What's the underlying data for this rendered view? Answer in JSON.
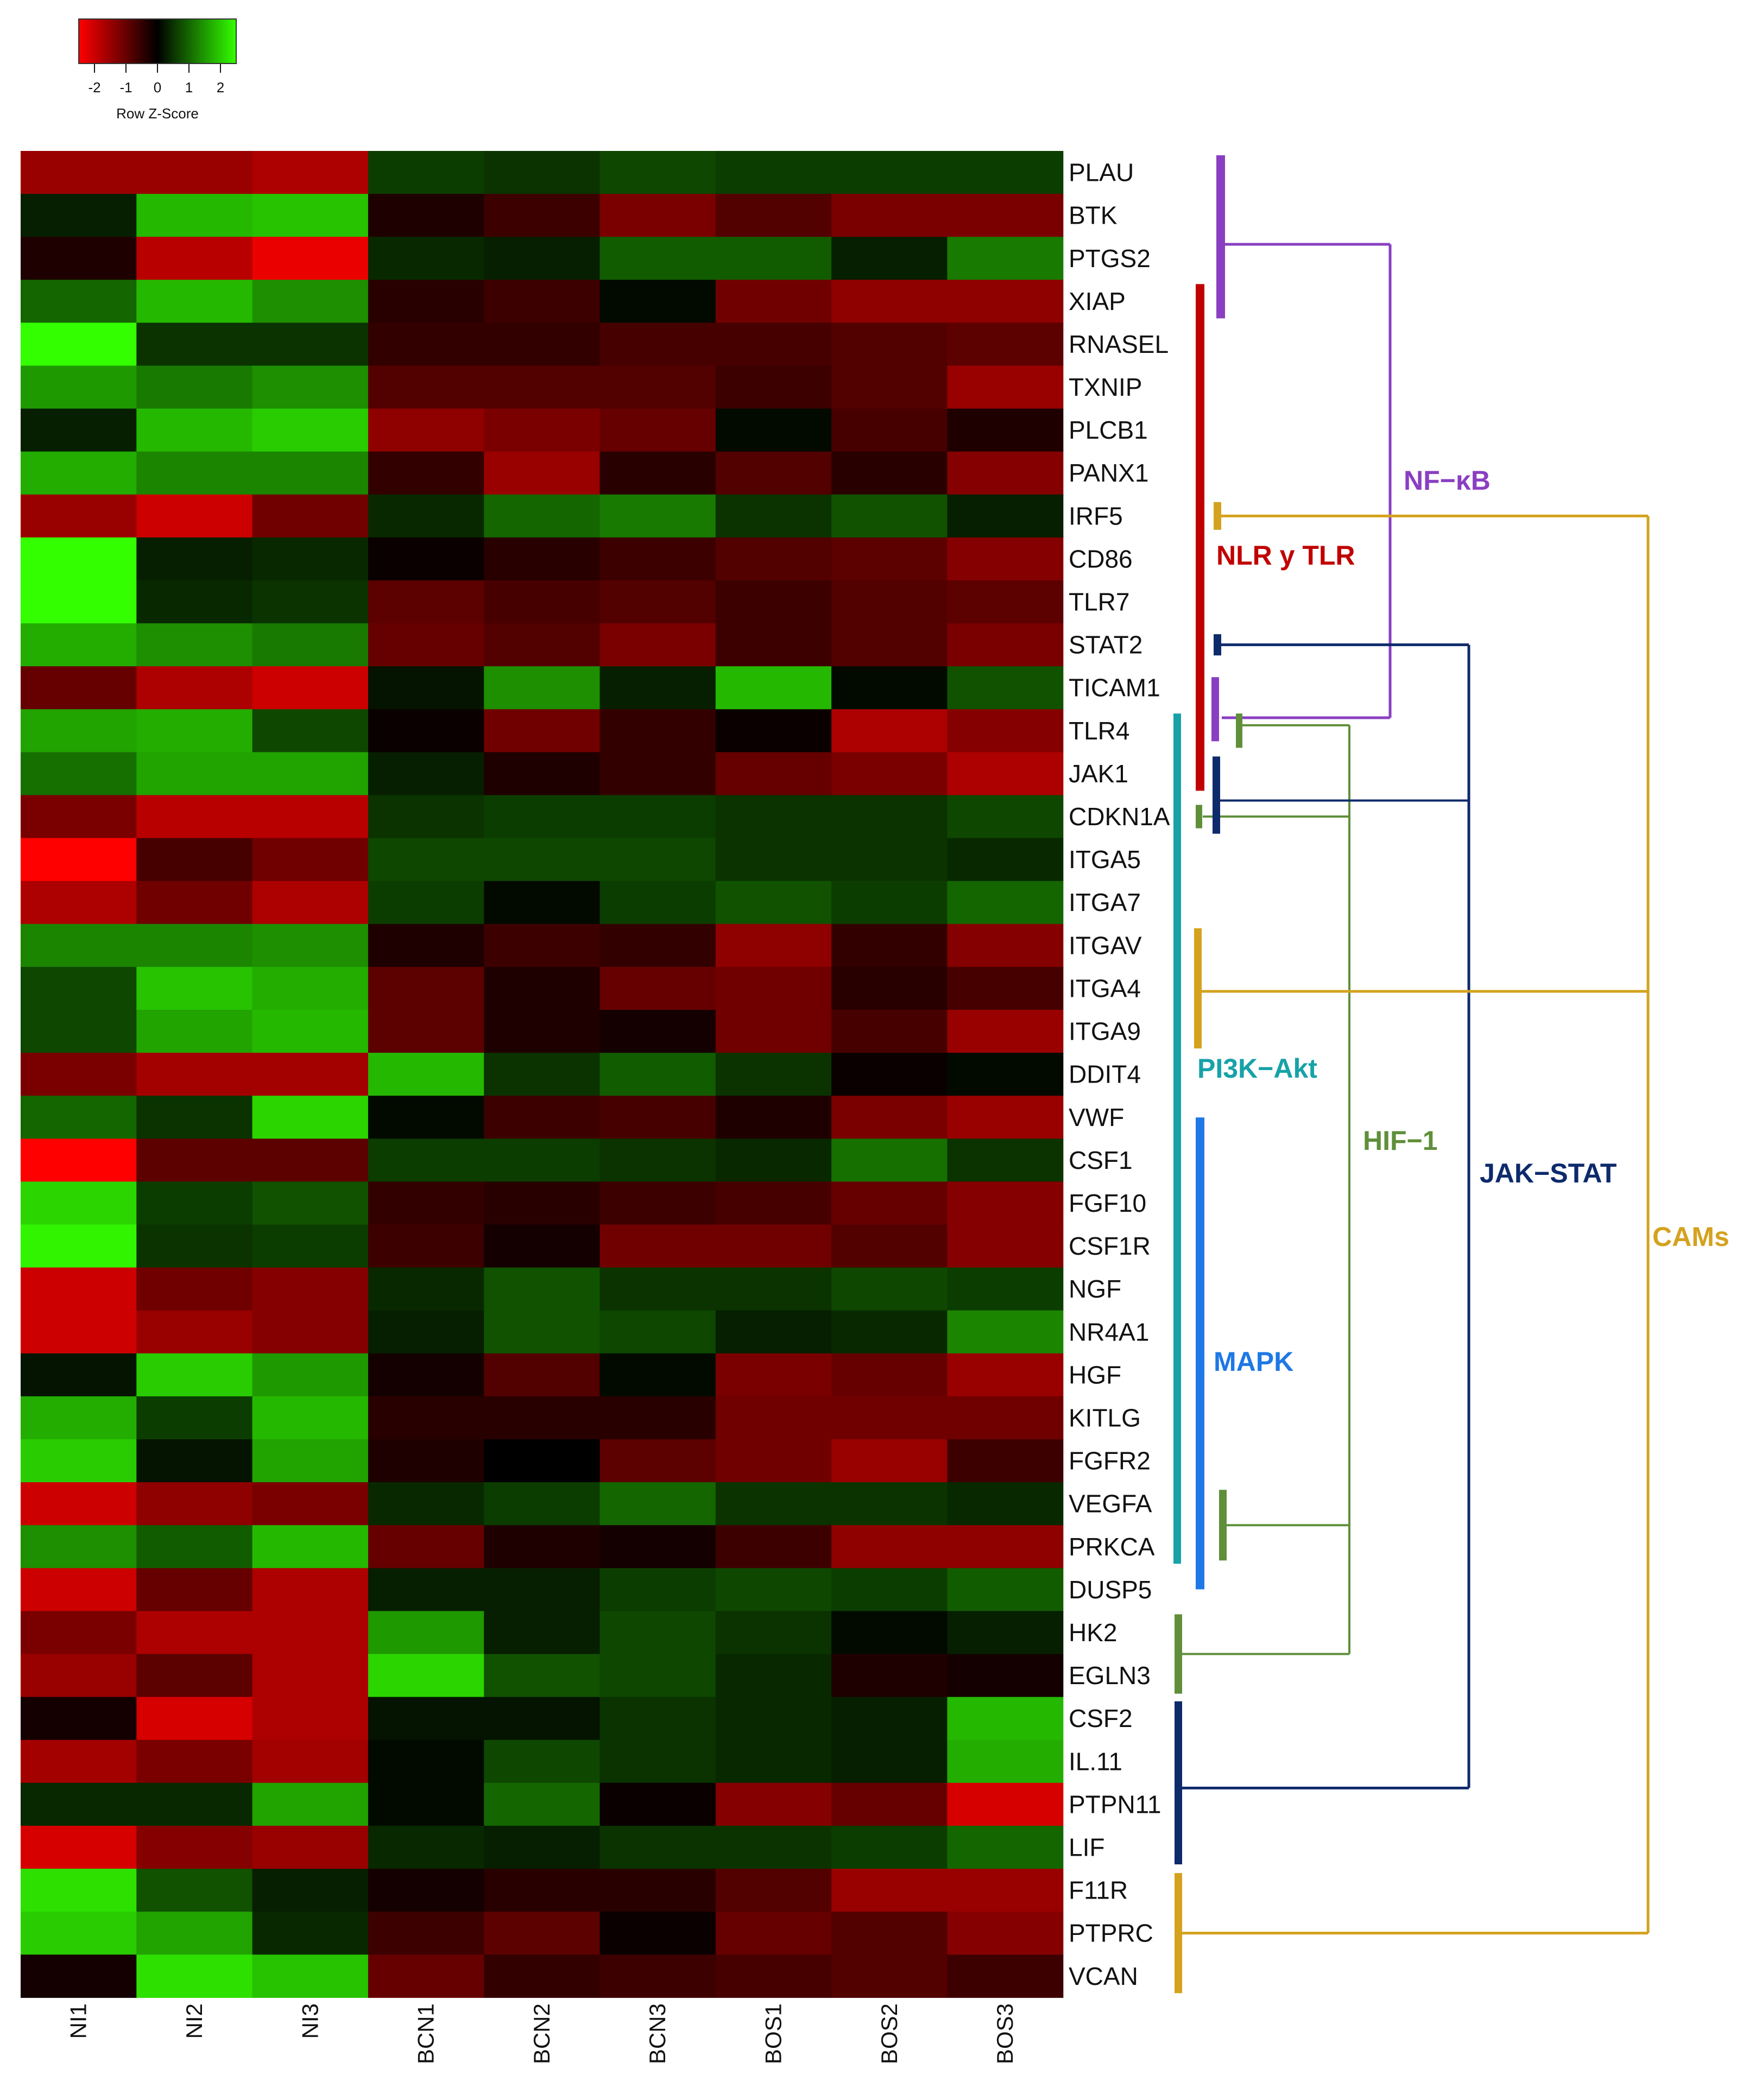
{
  "chart_data": {
    "type": "heatmap",
    "title": "",
    "color_key": {
      "title": "Row Z-Score",
      "ticks": [
        "-2",
        "-1",
        "0",
        "1",
        "2"
      ],
      "range": [
        -2.5,
        2.5
      ],
      "low_color": "#ff0000",
      "mid_color": "#000000",
      "high_color": "#33ff00"
    },
    "columns": [
      "NI1",
      "NI2",
      "NI3",
      "BCN1",
      "BCN2",
      "BCN3",
      "BOS1",
      "BOS2",
      "BOS3"
    ],
    "rows": [
      "PLAU",
      "BTK",
      "PTGS2",
      "XIAP",
      "RNASEL",
      "TXNIP",
      "PLCB1",
      "PANX1",
      "IRF5",
      "CD86",
      "TLR7",
      "STAT2",
      "TICAM1",
      "TLR4",
      "JAK1",
      "CDKN1A",
      "ITGA5",
      "ITGA7",
      "ITGAV",
      "ITGA4",
      "ITGA9",
      "DDIT4",
      "VWF",
      "CSF1",
      "FGF10",
      "CSF1R",
      "NGF",
      "NR4A1",
      "HGF",
      "KITLG",
      "FGFR2",
      "VEGFA",
      "PRKCA",
      "DUSP5",
      "HK2",
      "EGLN3",
      "CSF2",
      "IL.11",
      "PTPN11",
      "LIF",
      "F11R",
      "PTPRC",
      "VCAN"
    ],
    "row_labels": [
      "PLAU",
      "BTK",
      "PTGS2",
      "XIAP",
      "RNASEL",
      "TXNIP",
      "PLCB1",
      "PANX1",
      "IRF5",
      "CD86",
      "TLR7",
      "STAT2",
      "TICAM1",
      "TLR4",
      "JAK1",
      "CDKN1A",
      "ITGA5",
      "ITGA7",
      "ITGAV",
      "ITGA4",
      "ITGA9",
      "DDIT4",
      "VWF",
      "CSF1",
      "FGF10",
      "CSF1R",
      "NGF",
      "NR4A1",
      "HGF",
      "KITLG",
      "FGFR2",
      "VEGFA",
      "PRKCA",
      "DUSP5",
      "HK2",
      "EGLN3",
      "CSF2",
      "IL.11",
      "PTPN11",
      "LIF",
      "F11R",
      "PTPRC",
      "VCAN"
    ],
    "values": [
      [
        -1.5,
        -1.5,
        -1.7,
        0.6,
        0.5,
        0.7,
        0.6,
        0.6,
        0.6
      ],
      [
        0.3,
        1.8,
        1.9,
        -0.3,
        -0.6,
        -1.2,
        -0.8,
        -1.2,
        -1.2
      ],
      [
        -0.3,
        -1.8,
        -2.3,
        0.4,
        0.3,
        0.9,
        0.9,
        0.3,
        1.2
      ],
      [
        1.0,
        1.8,
        1.4,
        -0.4,
        -0.6,
        0.1,
        -1.1,
        -1.4,
        -1.4
      ],
      [
        2.5,
        0.5,
        0.5,
        -0.5,
        -0.5,
        -0.7,
        -0.7,
        -0.8,
        -0.9
      ],
      [
        1.5,
        1.2,
        1.4,
        -0.8,
        -0.8,
        -0.8,
        -0.6,
        -0.8,
        -1.5
      ],
      [
        0.3,
        1.8,
        2.0,
        -1.4,
        -1.2,
        -1.0,
        0.1,
        -0.7,
        -0.3
      ],
      [
        1.7,
        1.3,
        1.3,
        -0.5,
        -1.5,
        -0.4,
        -0.8,
        -0.4,
        -1.3
      ],
      [
        -1.5,
        -2.0,
        -1.1,
        0.4,
        1.0,
        1.2,
        0.5,
        0.8,
        0.3
      ],
      [
        2.5,
        0.3,
        0.4,
        -0.1,
        -0.4,
        -0.6,
        -0.8,
        -0.9,
        -1.3
      ],
      [
        2.5,
        0.4,
        0.5,
        -0.9,
        -0.7,
        -0.8,
        -0.6,
        -0.8,
        -0.9
      ],
      [
        1.7,
        1.4,
        1.2,
        -1.0,
        -0.8,
        -1.2,
        -0.6,
        -0.8,
        -1.2
      ],
      [
        -1.0,
        -1.7,
        -2.0,
        0.2,
        1.4,
        0.3,
        1.8,
        0.1,
        0.8
      ],
      [
        1.6,
        1.7,
        0.7,
        -0.1,
        -1.1,
        -0.5,
        -0.1,
        -1.7,
        -1.3
      ],
      [
        1.1,
        1.6,
        1.6,
        0.3,
        -0.3,
        -0.5,
        -1.0,
        -1.2,
        -1.7
      ],
      [
        -1.2,
        -1.8,
        -1.8,
        0.5,
        0.6,
        0.6,
        0.5,
        0.5,
        0.7
      ],
      [
        -2.5,
        -0.7,
        -1.1,
        0.7,
        0.7,
        0.7,
        0.5,
        0.5,
        0.4
      ],
      [
        -1.7,
        -1.1,
        -1.7,
        0.6,
        0.1,
        0.6,
        0.8,
        0.6,
        1.0
      ],
      [
        1.3,
        1.3,
        1.4,
        -0.3,
        -0.6,
        -0.5,
        -1.4,
        -0.5,
        -1.3
      ],
      [
        0.7,
        1.9,
        1.7,
        -0.9,
        -0.3,
        -1.0,
        -1.1,
        -0.4,
        -0.7
      ],
      [
        0.7,
        1.6,
        1.8,
        -0.9,
        -0.3,
        -0.2,
        -1.1,
        -0.7,
        -1.5
      ],
      [
        -1.2,
        -1.6,
        -1.6,
        1.8,
        0.5,
        0.9,
        0.5,
        -0.1,
        0.1
      ],
      [
        1.0,
        0.5,
        2.1,
        0.1,
        -0.6,
        -0.7,
        -0.3,
        -1.2,
        -1.5
      ],
      [
        -2.5,
        -0.9,
        -0.9,
        0.6,
        0.6,
        0.5,
        0.4,
        1.1,
        0.5
      ],
      [
        2.1,
        0.6,
        0.8,
        -0.5,
        -0.4,
        -0.6,
        -0.7,
        -1.0,
        -1.3
      ],
      [
        2.4,
        0.5,
        0.6,
        -0.6,
        -0.2,
        -1.1,
        -1.1,
        -0.8,
        -1.3
      ],
      [
        -2.0,
        -1.1,
        -1.3,
        0.4,
        0.8,
        0.5,
        0.5,
        0.7,
        0.6
      ],
      [
        -2.0,
        -1.5,
        -1.3,
        0.3,
        0.8,
        0.7,
        0.3,
        0.4,
        1.3
      ],
      [
        0.2,
        2.0,
        1.5,
        -0.2,
        -0.8,
        0.1,
        -1.2,
        -1.0,
        -1.5
      ],
      [
        1.7,
        0.6,
        1.8,
        -0.4,
        -0.4,
        -0.4,
        -1.1,
        -1.1,
        -1.1
      ],
      [
        2.0,
        0.2,
        1.6,
        -0.3,
        0.0,
        -0.9,
        -1.1,
        -1.5,
        -0.6
      ],
      [
        -2.0,
        -1.4,
        -1.2,
        0.4,
        0.6,
        1.0,
        0.5,
        0.5,
        0.4
      ],
      [
        1.4,
        0.9,
        1.8,
        -1.0,
        -0.3,
        -0.2,
        -0.6,
        -1.4,
        -1.4
      ],
      [
        -2.0,
        -1.0,
        -1.7,
        0.3,
        0.3,
        0.6,
        0.7,
        0.6,
        0.9
      ],
      [
        -1.2,
        -1.7,
        -1.7,
        1.5,
        0.3,
        0.7,
        0.5,
        0.1,
        0.3
      ],
      [
        -1.5,
        -0.9,
        -1.7,
        2.1,
        0.8,
        0.7,
        0.4,
        -0.3,
        -0.2
      ],
      [
        -0.2,
        -2.1,
        -1.7,
        0.2,
        0.2,
        0.5,
        0.4,
        0.3,
        1.8
      ],
      [
        -1.6,
        -1.2,
        -1.6,
        0.1,
        0.7,
        0.5,
        0.4,
        0.3,
        1.7
      ],
      [
        0.4,
        0.4,
        1.6,
        0.1,
        1.0,
        -0.1,
        -1.3,
        -1.0,
        -2.1
      ],
      [
        -2.1,
        -1.3,
        -1.5,
        0.4,
        0.3,
        0.5,
        0.5,
        0.6,
        1.0
      ],
      [
        2.2,
        0.8,
        0.3,
        -0.2,
        -0.4,
        -0.4,
        -0.8,
        -1.5,
        -1.5
      ],
      [
        2.0,
        1.6,
        0.4,
        -0.6,
        -0.9,
        -0.1,
        -1.0,
        -0.8,
        -1.3
      ],
      [
        -0.2,
        2.2,
        1.9,
        -1.0,
        -0.5,
        -0.6,
        -0.7,
        -0.8,
        -0.6
      ]
    ],
    "pathways": [
      {
        "name": "NF−κB",
        "color": "#8a3fc2",
        "genes": [
          [
            "PLAU",
            "XIAP"
          ],
          [
            "TLR4",
            "TLR4"
          ]
        ]
      },
      {
        "name": "NLR y TLR",
        "color": "#c00000",
        "genes": [
          [
            "XIAP",
            "JAK1"
          ]
        ]
      },
      {
        "name": "PI3K−Akt",
        "color": "#17a2a8",
        "genes": [
          [
            "TLR4",
            "PRKCA"
          ]
        ]
      },
      {
        "name": "MAPK",
        "color": "#1e78e6",
        "genes": [
          [
            "VWF",
            "DUSP5"
          ]
        ]
      },
      {
        "name": "HIF−1",
        "color": "#5f8f3a",
        "genes": [
          [
            "TLR4",
            "TLR4"
          ],
          [
            "CDKN1A",
            "CDKN1A"
          ],
          [
            "VEGFA",
            "PRKCA"
          ],
          [
            "HK2",
            "EGLN3"
          ]
        ]
      },
      {
        "name": "JAK−STAT",
        "color": "#0d2a6b",
        "genes": [
          [
            "STAT2",
            "STAT2"
          ],
          [
            "JAK1",
            "CDKN1A"
          ],
          [
            "CSF2",
            "LIF"
          ]
        ]
      },
      {
        "name": "CAMs",
        "color": "#d4a21e",
        "genes": [
          [
            "IRF5",
            "IRF5"
          ],
          [
            "ITGAV",
            "ITGA9"
          ],
          [
            "F11R",
            "VCAN"
          ]
        ]
      }
    ]
  }
}
